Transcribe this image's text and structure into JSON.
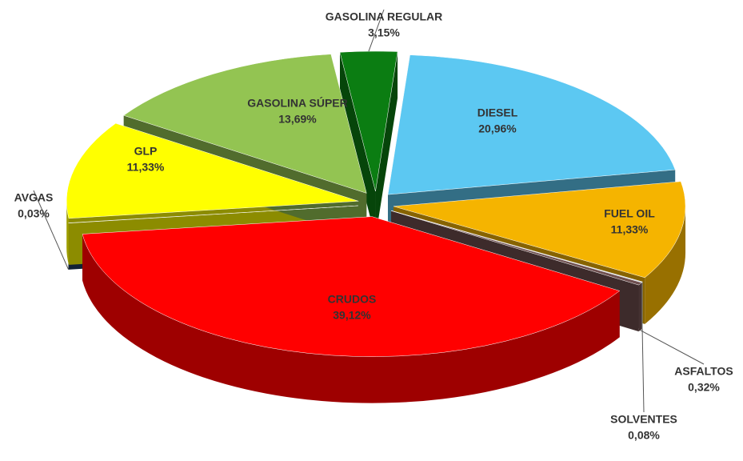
{
  "chart_data": {
    "type": "pie3d",
    "categories": [
      "GASOLINA REGULAR",
      "DIESEL",
      "FUEL OIL",
      "SOLVENTES",
      "ASFALTOS",
      "CRUDOS",
      "AVGAS",
      "GLP",
      "GASOLINA SÚPER"
    ],
    "values": [
      3.15,
      20.96,
      11.33,
      0.08,
      0.32,
      39.12,
      0.03,
      11.33,
      13.69
    ],
    "value_labels": [
      "3,15%",
      "20,96%",
      "11,33%",
      "0,08%",
      "0,32%",
      "39,12%",
      "0,03%",
      "11,33%",
      "13,69%"
    ],
    "colors": [
      "#0b7d12",
      "#5cc8f2",
      "#f5b400",
      "#c9d3dc",
      "#6e4f4f",
      "#ff0000",
      "#1f3d63",
      "#ffff00",
      "#93c452"
    ]
  }
}
